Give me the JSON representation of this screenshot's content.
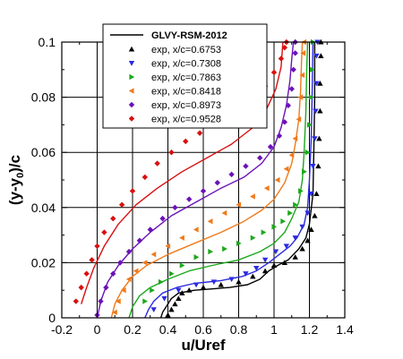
{
  "chart_data": {
    "type": "line",
    "xlabel": "u/Uref",
    "ylabel_main": "(y-y",
    "ylabel_sub": "0",
    "ylabel_tail": ")/c",
    "xlim": [
      -0.2,
      1.4
    ],
    "ylim": [
      0,
      0.1
    ],
    "xticks": [
      -0.2,
      0,
      0.2,
      0.4,
      0.6,
      0.8,
      1,
      1.2,
      1.4
    ],
    "xtick_labels": [
      "-0.2",
      "0",
      "0.2",
      "0.4",
      "0.6",
      "0.8",
      "1",
      "1.2",
      "1.4"
    ],
    "yticks": [
      0,
      0.02,
      0.04,
      0.06,
      0.08,
      0.1
    ],
    "ytick_labels": [
      "0",
      "0.02",
      "0.04",
      "0.06",
      "0.08",
      "0.1"
    ],
    "grid": true,
    "legend_position": "top-center",
    "model_label": "GLVY-RSM-2012",
    "series": [
      {
        "name": "exp, x/c=0.6753",
        "color": "#000000",
        "marker": "triangle-up",
        "model": [
          [
            0.36,
            0
          ],
          [
            0.37,
            0.002
          ],
          [
            0.39,
            0.004
          ],
          [
            0.42,
            0.007
          ],
          [
            0.46,
            0.009
          ],
          [
            0.55,
            0.01
          ],
          [
            0.65,
            0.0105
          ],
          [
            0.75,
            0.011
          ],
          [
            0.85,
            0.012
          ],
          [
            0.92,
            0.014
          ],
          [
            0.97,
            0.017
          ],
          [
            1.02,
            0.019
          ],
          [
            1.08,
            0.021
          ],
          [
            1.14,
            0.025
          ],
          [
            1.18,
            0.029
          ],
          [
            1.2,
            0.034
          ],
          [
            1.22,
            0.045
          ],
          [
            1.225,
            0.06
          ],
          [
            1.23,
            0.08
          ],
          [
            1.23,
            0.1
          ]
        ],
        "exp": [
          [
            0.4,
            0.001
          ],
          [
            0.42,
            0.003
          ],
          [
            0.44,
            0.005
          ],
          [
            0.46,
            0.007
          ],
          [
            0.48,
            0.009
          ],
          [
            0.52,
            0.01
          ],
          [
            0.6,
            0.011
          ],
          [
            0.7,
            0.012
          ],
          [
            0.8,
            0.013
          ],
          [
            0.88,
            0.015
          ],
          [
            0.95,
            0.017
          ],
          [
            1.0,
            0.019
          ],
          [
            1.06,
            0.02
          ],
          [
            1.12,
            0.022
          ],
          [
            1.16,
            0.025
          ],
          [
            1.19,
            0.028
          ],
          [
            1.21,
            0.032
          ],
          [
            1.23,
            0.037
          ],
          [
            1.24,
            0.045
          ],
          [
            1.25,
            0.055
          ],
          [
            1.255,
            0.065
          ],
          [
            1.26,
            0.075
          ],
          [
            1.26,
            0.085
          ],
          [
            1.265,
            0.095
          ],
          [
            1.265,
            0.1
          ]
        ]
      },
      {
        "name": "exp, x/c=0.7308",
        "color": "#2b2be0",
        "marker": "triangle-down",
        "model": [
          [
            0.27,
            0
          ],
          [
            0.29,
            0.003
          ],
          [
            0.32,
            0.006
          ],
          [
            0.37,
            0.009
          ],
          [
            0.45,
            0.011
          ],
          [
            0.55,
            0.0125
          ],
          [
            0.7,
            0.0135
          ],
          [
            0.82,
            0.015
          ],
          [
            0.9,
            0.017
          ],
          [
            0.97,
            0.02
          ],
          [
            1.03,
            0.023
          ],
          [
            1.09,
            0.026
          ],
          [
            1.13,
            0.029
          ],
          [
            1.17,
            0.034
          ],
          [
            1.19,
            0.04
          ],
          [
            1.2,
            0.05
          ],
          [
            1.21,
            0.065
          ],
          [
            1.215,
            0.08
          ],
          [
            1.22,
            0.1
          ]
        ],
        "exp": [
          [
            0.32,
            0.003
          ],
          [
            0.38,
            0.007
          ],
          [
            0.46,
            0.01
          ],
          [
            0.56,
            0.012
          ],
          [
            0.66,
            0.013
          ],
          [
            0.76,
            0.014
          ],
          [
            0.84,
            0.016
          ],
          [
            0.9,
            0.018
          ],
          [
            0.95,
            0.021
          ],
          [
            1.01,
            0.024
          ],
          [
            1.07,
            0.026
          ],
          [
            1.12,
            0.029
          ],
          [
            1.16,
            0.033
          ],
          [
            1.19,
            0.038
          ],
          [
            1.21,
            0.045
          ],
          [
            1.22,
            0.055
          ],
          [
            1.23,
            0.065
          ],
          [
            1.235,
            0.075
          ],
          [
            1.24,
            0.085
          ],
          [
            1.24,
            0.095
          ],
          [
            1.245,
            0.1
          ]
        ]
      },
      {
        "name": "exp, x/c=0.7863",
        "color": "#1ca81c",
        "marker": "triangle-right",
        "model": [
          [
            0.18,
            0
          ],
          [
            0.2,
            0.004
          ],
          [
            0.24,
            0.008
          ],
          [
            0.3,
            0.011
          ],
          [
            0.4,
            0.014
          ],
          [
            0.52,
            0.017
          ],
          [
            0.65,
            0.019
          ],
          [
            0.8,
            0.021
          ],
          [
            0.92,
            0.024
          ],
          [
            1.0,
            0.027
          ],
          [
            1.06,
            0.031
          ],
          [
            1.1,
            0.036
          ],
          [
            1.14,
            0.042
          ],
          [
            1.16,
            0.05
          ],
          [
            1.17,
            0.06
          ],
          [
            1.18,
            0.075
          ],
          [
            1.185,
            0.09
          ],
          [
            1.19,
            0.1
          ]
        ],
        "exp": [
          [
            0.27,
            0.006
          ],
          [
            0.31,
            0.01
          ],
          [
            0.36,
            0.013
          ],
          [
            0.42,
            0.016
          ],
          [
            0.48,
            0.019
          ],
          [
            0.56,
            0.022
          ],
          [
            0.64,
            0.024
          ],
          [
            0.72,
            0.025
          ],
          [
            0.8,
            0.027
          ],
          [
            0.88,
            0.029
          ],
          [
            0.94,
            0.031
          ],
          [
            1.0,
            0.033
          ],
          [
            1.05,
            0.035
          ],
          [
            1.09,
            0.038
          ],
          [
            1.12,
            0.041
          ],
          [
            1.15,
            0.046
          ],
          [
            1.17,
            0.053
          ],
          [
            1.19,
            0.06
          ],
          [
            1.2,
            0.07
          ],
          [
            1.21,
            0.08
          ],
          [
            1.215,
            0.09
          ],
          [
            1.22,
            0.1
          ]
        ]
      },
      {
        "name": "exp, x/c=0.8418",
        "color": "#f07a1a",
        "marker": "triangle-left",
        "model": [
          [
            0.08,
            0
          ],
          [
            0.1,
            0.005
          ],
          [
            0.14,
            0.01
          ],
          [
            0.2,
            0.015
          ],
          [
            0.28,
            0.019
          ],
          [
            0.4,
            0.023
          ],
          [
            0.55,
            0.027
          ],
          [
            0.7,
            0.031
          ],
          [
            0.83,
            0.035
          ],
          [
            0.93,
            0.039
          ],
          [
            1.0,
            0.043
          ],
          [
            1.06,
            0.049
          ],
          [
            1.1,
            0.056
          ],
          [
            1.12,
            0.063
          ],
          [
            1.14,
            0.072
          ],
          [
            1.15,
            0.082
          ],
          [
            1.155,
            0.092
          ],
          [
            1.16,
            0.1
          ]
        ],
        "exp": [
          [
            0.1,
            0.002
          ],
          [
            0.12,
            0.006
          ],
          [
            0.15,
            0.01
          ],
          [
            0.18,
            0.014
          ],
          [
            0.22,
            0.017
          ],
          [
            0.27,
            0.02
          ],
          [
            0.32,
            0.023
          ],
          [
            0.4,
            0.026
          ],
          [
            0.48,
            0.029
          ],
          [
            0.56,
            0.032
          ],
          [
            0.64,
            0.035
          ],
          [
            0.72,
            0.038
          ],
          [
            0.8,
            0.041
          ],
          [
            0.88,
            0.044
          ],
          [
            0.96,
            0.047
          ],
          [
            1.02,
            0.05
          ],
          [
            1.07,
            0.054
          ],
          [
            1.1,
            0.059
          ],
          [
            1.12,
            0.065
          ],
          [
            1.14,
            0.072
          ],
          [
            1.15,
            0.08
          ],
          [
            1.16,
            0.088
          ],
          [
            1.165,
            0.096
          ],
          [
            1.17,
            0.1
          ]
        ]
      },
      {
        "name": "exp, x/c=0.8973",
        "color": "#6a12b8",
        "marker": "diamond",
        "model": [
          [
            0.0,
            0
          ],
          [
            0.02,
            0.006
          ],
          [
            0.06,
            0.013
          ],
          [
            0.12,
            0.019
          ],
          [
            0.2,
            0.025
          ],
          [
            0.3,
            0.031
          ],
          [
            0.42,
            0.037
          ],
          [
            0.56,
            0.042
          ],
          [
            0.7,
            0.047
          ],
          [
            0.83,
            0.051
          ],
          [
            0.93,
            0.056
          ],
          [
            1.0,
            0.062
          ],
          [
            1.04,
            0.069
          ],
          [
            1.07,
            0.077
          ],
          [
            1.09,
            0.086
          ],
          [
            1.1,
            0.094
          ],
          [
            1.11,
            0.1
          ]
        ],
        "exp": [
          [
            0.0,
            0.001
          ],
          [
            0.02,
            0.006
          ],
          [
            0.05,
            0.011
          ],
          [
            0.09,
            0.016
          ],
          [
            0.13,
            0.02
          ],
          [
            0.18,
            0.024
          ],
          [
            0.24,
            0.028
          ],
          [
            0.3,
            0.032
          ],
          [
            0.37,
            0.036
          ],
          [
            0.44,
            0.04
          ],
          [
            0.52,
            0.043
          ],
          [
            0.6,
            0.046
          ],
          [
            0.68,
            0.049
          ],
          [
            0.76,
            0.052
          ],
          [
            0.84,
            0.055
          ],
          [
            0.92,
            0.058
          ],
          [
            0.98,
            0.062
          ],
          [
            1.03,
            0.066
          ],
          [
            1.06,
            0.071
          ],
          [
            1.08,
            0.077
          ],
          [
            1.1,
            0.083
          ],
          [
            1.11,
            0.09
          ],
          [
            1.12,
            0.096
          ],
          [
            1.12,
            0.1
          ]
        ]
      },
      {
        "name": "exp, x/c=0.9528",
        "color": "#d81010",
        "marker": "diamond",
        "model": [
          [
            -0.09,
            0.005
          ],
          [
            -0.06,
            0.011
          ],
          [
            -0.02,
            0.018
          ],
          [
            0.04,
            0.026
          ],
          [
            0.12,
            0.034
          ],
          [
            0.22,
            0.041
          ],
          [
            0.34,
            0.047
          ],
          [
            0.48,
            0.053
          ],
          [
            0.62,
            0.058
          ],
          [
            0.76,
            0.063
          ],
          [
            0.88,
            0.069
          ],
          [
            0.96,
            0.076
          ],
          [
            1.01,
            0.083
          ],
          [
            1.04,
            0.091
          ],
          [
            1.05,
            0.1
          ]
        ],
        "exp": [
          [
            -0.12,
            0.006
          ],
          [
            -0.09,
            0.011
          ],
          [
            -0.06,
            0.016
          ],
          [
            -0.03,
            0.021
          ],
          [
            0.0,
            0.026
          ],
          [
            0.04,
            0.031
          ],
          [
            0.09,
            0.036
          ],
          [
            0.14,
            0.041
          ],
          [
            0.2,
            0.046
          ],
          [
            0.27,
            0.051
          ],
          [
            0.34,
            0.056
          ],
          [
            0.42,
            0.06
          ],
          [
            0.5,
            0.064
          ],
          [
            0.58,
            0.067
          ],
          [
            0.66,
            0.07
          ],
          [
            0.74,
            0.073
          ],
          [
            0.82,
            0.076
          ],
          [
            0.89,
            0.08
          ],
          [
            0.95,
            0.084
          ],
          [
            1.0,
            0.089
          ],
          [
            1.04,
            0.094
          ],
          [
            1.06,
            0.098
          ],
          [
            1.07,
            0.1
          ]
        ]
      }
    ]
  }
}
